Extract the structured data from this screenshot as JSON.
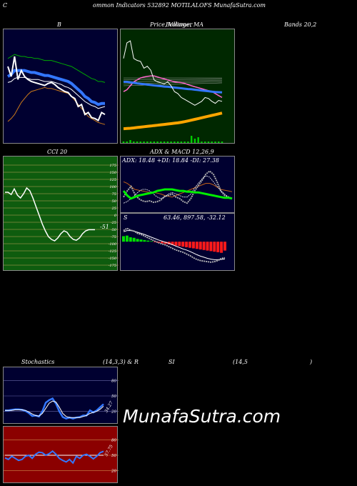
{
  "header": {
    "c_letter": "C",
    "title": "ommon  Indicators 532892  MOTILALOFS MunafaSutra.com"
  },
  "titles": {
    "bollinger_b": "B",
    "price_ma": "Price,  Volume,  MA",
    "price_ma_overlap": "Bollinger",
    "bands": "Bands 20,2",
    "cci": "CCI 20",
    "adx_macd": "ADX  & MACD 12,26,9",
    "stoch_left": "Stochastics",
    "stoch_params": "(14,3,3) & R",
    "rsi_si": "SI",
    "rsi_params": "(14,5",
    "rsi_close": ")"
  },
  "labels": {
    "adx_readout": "ADX: 18.48  +DI: 18.84  -DI: 27.38",
    "macd_s": "S",
    "macd_readout": "63.46,  897.58,  -32.12",
    "cci_last": "-51",
    "stoch_last": "34.27",
    "rsi_last": "57.75"
  },
  "watermark": "MunafaSutra.com",
  "colors": {
    "cci_bg": "#0e5c0e",
    "price_bg": "#002800",
    "rsi_bg": "#8b0000",
    "navy_bg": "#000030",
    "sma_green": "#00aa00",
    "blue_line": "#3377ff",
    "orange_line": "#cc7a1a"
  },
  "chart_data": [
    {
      "type": "line",
      "name": "bollinger_b_panel",
      "x": [
        1,
        2,
        3,
        4,
        5,
        6,
        7,
        8,
        9,
        10,
        11,
        12,
        13,
        14,
        15,
        16,
        17,
        18,
        19,
        20,
        21,
        22,
        23,
        24,
        25,
        26,
        27,
        28,
        29,
        30
      ],
      "series": [
        {
          "values": [
            70,
            60,
            80,
            57,
            66,
            60,
            57,
            55,
            54,
            53,
            52,
            51,
            53,
            54,
            52,
            49,
            47,
            45,
            44,
            40,
            38,
            30,
            32,
            22,
            24,
            19,
            18,
            16,
            24,
            22
          ]
        },
        {
          "values": [
            60,
            62,
            66,
            66,
            66,
            66,
            65,
            64,
            64,
            63,
            62,
            61,
            61,
            60,
            59,
            58,
            57,
            56,
            55,
            53,
            50,
            47,
            44,
            40,
            38,
            35,
            34,
            32,
            33,
            33
          ]
        },
        {
          "values": [
            54,
            55,
            58,
            59,
            59,
            59,
            58,
            57,
            57,
            57,
            56,
            55,
            55,
            55,
            54,
            53,
            52,
            50,
            49,
            47,
            44,
            41,
            38,
            35,
            33,
            31,
            30,
            28,
            29,
            30
          ]
        },
        {
          "values": [
            78,
            80,
            82,
            81,
            80,
            80,
            79,
            79,
            78,
            78,
            77,
            76,
            76,
            76,
            75,
            74,
            73,
            72,
            71,
            70,
            68,
            66,
            64,
            62,
            60,
            58,
            57,
            55,
            55,
            54
          ]
        },
        {
          "values": [
            15,
            18,
            22,
            28,
            34,
            38,
            42,
            45,
            46,
            47,
            48,
            49,
            48,
            48,
            47,
            46,
            45,
            44,
            43,
            40,
            36,
            32,
            28,
            24,
            20,
            18,
            16,
            14,
            13,
            12
          ]
        }
      ]
    },
    {
      "type": "line",
      "name": "price_volume_ma",
      "x": [
        1,
        2,
        3,
        4,
        5,
        6,
        7,
        8,
        9,
        10,
        11,
        12,
        13,
        14,
        15,
        16,
        17,
        18,
        19,
        20,
        21,
        22,
        23,
        24,
        25,
        26,
        27,
        28,
        29,
        30
      ],
      "series": [
        {
          "values": [
            1000,
            1080,
            1090,
            1000,
            990,
            985,
            950,
            960,
            940,
            890,
            880,
            875,
            870,
            880,
            860,
            830,
            820,
            800,
            790,
            780,
            770,
            760,
            770,
            780,
            800,
            795,
            780,
            770,
            785,
            780
          ]
        },
        {
          "values": [
            880,
            880,
            878,
            875,
            872,
            870,
            868,
            866,
            864,
            862,
            860,
            858,
            856,
            855,
            853,
            851,
            849,
            847,
            845,
            843,
            842,
            840,
            838,
            836,
            834,
            832,
            830,
            828,
            827,
            826
          ]
        },
        {
          "values": [
            640,
            641,
            642,
            644,
            646,
            648,
            650,
            652,
            654,
            656,
            658,
            660,
            662,
            664,
            666,
            668,
            670,
            673,
            676,
            680,
            684,
            688,
            692,
            696,
            700,
            704,
            708,
            712,
            716,
            720
          ]
        },
        {
          "values": [
            830,
            840,
            860,
            880,
            890,
            900,
            905,
            908,
            910,
            910,
            905,
            900,
            895,
            890,
            885,
            880,
            878,
            876,
            872,
            866,
            860,
            855,
            850,
            845,
            840,
            835,
            830,
            820,
            810,
            800
          ]
        }
      ],
      "volume": [
        1,
        1,
        2,
        1,
        1,
        1,
        1,
        1,
        1,
        1,
        1,
        1,
        1,
        1,
        1,
        1,
        1,
        1,
        1,
        1,
        5,
        3,
        4,
        1,
        1,
        1,
        1,
        1,
        1,
        1
      ]
    },
    {
      "type": "line",
      "name": "cci_20",
      "ylim": [
        -175,
        175
      ],
      "yticks": [
        175,
        150,
        125,
        100,
        75,
        50,
        25,
        0,
        -25,
        -50,
        -75,
        -100,
        -125,
        -150,
        -175
      ],
      "x": [
        1,
        2,
        3,
        4,
        5,
        6,
        7,
        8,
        9,
        10,
        11,
        12,
        13,
        14,
        15,
        16,
        17,
        18,
        19,
        20,
        21,
        22,
        23,
        24,
        25,
        26,
        27,
        28,
        29,
        30
      ],
      "series": [
        {
          "values": [
            80,
            80,
            72,
            92,
            70,
            60,
            75,
            95,
            85,
            60,
            30,
            0,
            -30,
            -55,
            -75,
            -85,
            -90,
            -80,
            -65,
            -55,
            -60,
            -75,
            -85,
            -88,
            -80,
            -65,
            -55,
            -51,
            -51,
            -51
          ]
        }
      ]
    },
    {
      "type": "line",
      "name": "adx_di",
      "series": [
        {
          "values": [
            20,
            28,
            34,
            24,
            18,
            15,
            14,
            15,
            13,
            14,
            16,
            21,
            22,
            24,
            20,
            18,
            14,
            12,
            18,
            28,
            35,
            42,
            50,
            54,
            50,
            40,
            28,
            22,
            20,
            18
          ]
        },
        {
          "values": [
            12,
            14,
            18,
            22,
            27,
            30,
            30,
            28,
            24,
            20,
            18,
            20,
            24,
            26,
            24,
            22,
            20,
            20,
            24,
            32,
            38,
            44,
            48,
            46,
            40,
            34,
            28,
            24,
            20,
            19
          ]
        },
        {
          "values": [
            40,
            38,
            34,
            30,
            29,
            28,
            27,
            26,
            26,
            25,
            24,
            22,
            21,
            20,
            22,
            24,
            26,
            28,
            30,
            32,
            34,
            36,
            38,
            38,
            36,
            33,
            30,
            29,
            28,
            27
          ]
        },
        {
          "values": [
            28,
            22,
            18,
            20,
            22,
            23,
            24,
            25,
            26,
            28,
            29,
            30,
            30,
            30,
            29,
            28,
            28,
            27,
            27,
            26,
            26,
            25,
            24,
            23,
            22,
            21,
            20,
            19,
            19,
            18
          ]
        }
      ]
    },
    {
      "type": "line",
      "name": "macd_12_26_9",
      "series": [
        {
          "values": [
            40,
            48,
            42,
            38,
            30,
            26,
            20,
            14,
            8,
            2,
            -4,
            -8,
            -12,
            -18,
            -24,
            -30,
            -34,
            -38,
            -44,
            -50,
            -58,
            -64,
            -68,
            -70,
            -72,
            -74,
            -72,
            -68,
            -60,
            -58
          ]
        },
        {
          "values": [
            36,
            40,
            40,
            38,
            34,
            30,
            26,
            21,
            16,
            11,
            6,
            2,
            -2,
            -6,
            -11,
            -16,
            -21,
            -26,
            -30,
            -35,
            -41,
            -47,
            -52,
            -56,
            -60,
            -63,
            -65,
            -65,
            -64,
            -62
          ]
        }
      ],
      "histogram": [
        20,
        22,
        16,
        14,
        10,
        8,
        6,
        4,
        2,
        -2,
        -4,
        -6,
        -8,
        -10,
        -12,
        -14,
        -16,
        -18,
        -20,
        -22,
        -24,
        -26,
        -28,
        -30,
        -32,
        -34,
        -36,
        -38,
        -40,
        -32
      ]
    },
    {
      "type": "line",
      "name": "stochastics_14_3_3",
      "yticks": [
        80,
        50,
        20
      ],
      "series": [
        {
          "values": [
            22,
            22,
            23,
            24,
            24,
            23,
            21,
            17,
            11,
            12,
            10,
            20,
            37,
            42,
            45,
            35,
            20,
            9,
            6,
            8,
            6,
            8,
            9,
            12,
            12,
            22,
            18,
            22,
            28,
            34
          ]
        },
        {
          "values": [
            22,
            22,
            22,
            23,
            23,
            23,
            22,
            19,
            15,
            12,
            11,
            16,
            26,
            36,
            40,
            38,
            28,
            16,
            10,
            8,
            8,
            8,
            8,
            10,
            12,
            16,
            18,
            20,
            24,
            30
          ]
        }
      ]
    },
    {
      "type": "line",
      "name": "rsi_14",
      "yticks": [
        80,
        50,
        20
      ],
      "series": [
        {
          "values": [
            45,
            42,
            48,
            44,
            40,
            42,
            48,
            50,
            44,
            52,
            56,
            55,
            50,
            53,
            58,
            52,
            44,
            40,
            37,
            42,
            35,
            48,
            44,
            50,
            52,
            48,
            43,
            48,
            55,
            57.75
          ]
        },
        {
          "values": [
            50,
            50,
            50,
            50,
            50,
            50,
            50,
            50,
            50,
            50,
            50,
            50,
            50,
            50,
            50,
            50,
            50,
            50,
            50,
            50,
            50,
            50,
            50,
            50,
            50,
            50,
            50,
            50,
            50,
            50
          ]
        }
      ]
    }
  ]
}
